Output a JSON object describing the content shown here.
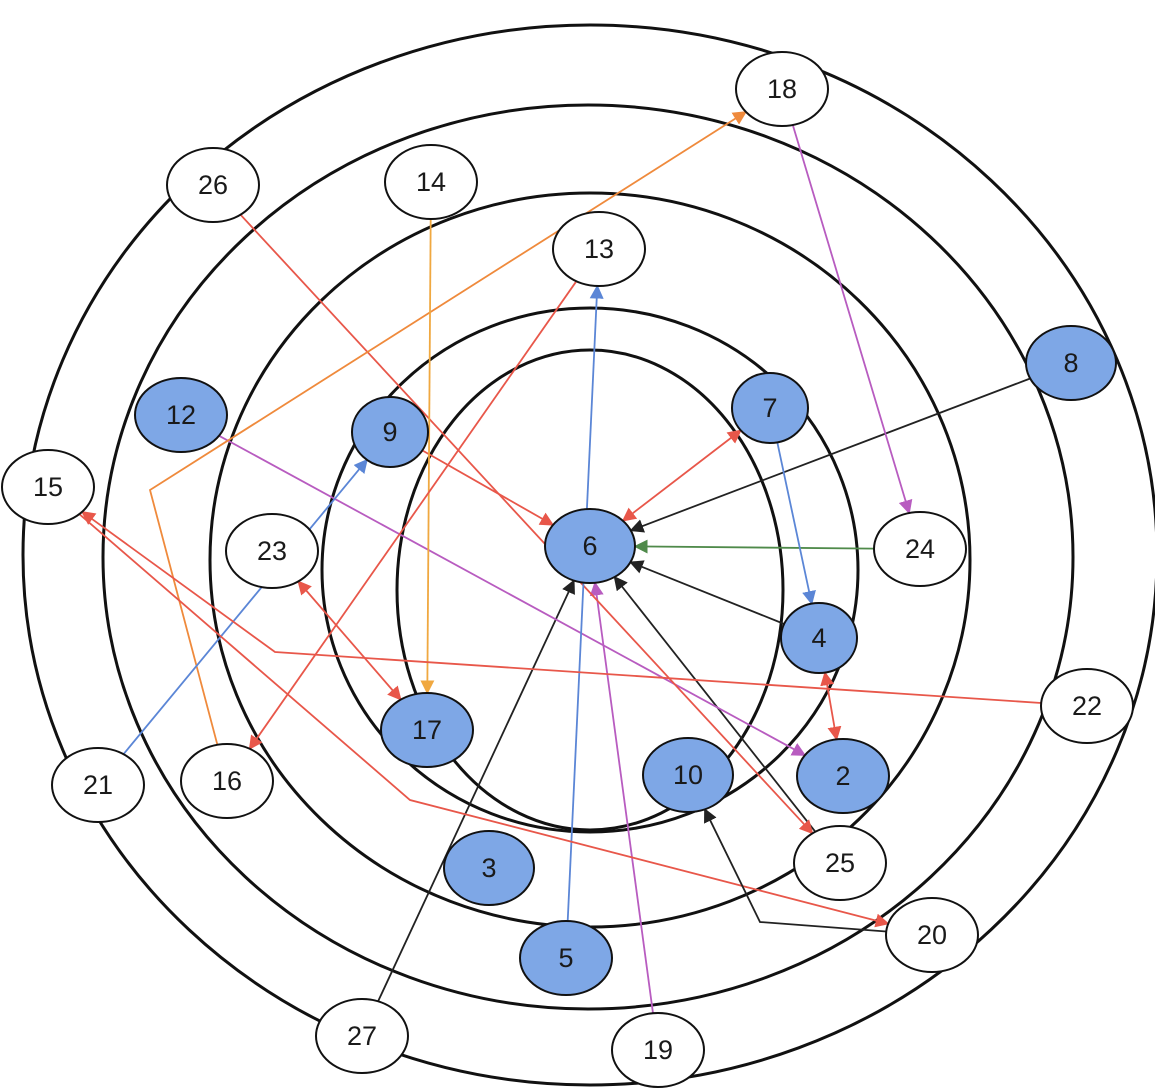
{
  "colors": {
    "background": "#ffffff",
    "ring_stroke": "#111111",
    "node_plain_fill": "#ffffff",
    "node_highlight_fill": "#7ea7e6",
    "node_stroke": "#111111",
    "edge_red": "#e8574a",
    "edge_orange": "#ef8a3c",
    "edge_amber": "#f0a840",
    "edge_blue": "#5b86d6",
    "edge_purple": "#b85cc0",
    "edge_black": "#222222",
    "edge_green": "#4f8a4a"
  },
  "nodes": [
    {
      "id": "2",
      "label": "2",
      "highlighted": true
    },
    {
      "id": "3",
      "label": "3",
      "highlighted": true
    },
    {
      "id": "4",
      "label": "4",
      "highlighted": true
    },
    {
      "id": "5",
      "label": "5",
      "highlighted": true
    },
    {
      "id": "6",
      "label": "6",
      "highlighted": true
    },
    {
      "id": "7",
      "label": "7",
      "highlighted": true
    },
    {
      "id": "8",
      "label": "8",
      "highlighted": true
    },
    {
      "id": "9",
      "label": "9",
      "highlighted": true
    },
    {
      "id": "10",
      "label": "10",
      "highlighted": true
    },
    {
      "id": "12",
      "label": "12",
      "highlighted": true
    },
    {
      "id": "13",
      "label": "13",
      "highlighted": false
    },
    {
      "id": "14",
      "label": "14",
      "highlighted": false
    },
    {
      "id": "15",
      "label": "15",
      "highlighted": false
    },
    {
      "id": "16",
      "label": "16",
      "highlighted": false
    },
    {
      "id": "17",
      "label": "17",
      "highlighted": true
    },
    {
      "id": "18",
      "label": "18",
      "highlighted": false
    },
    {
      "id": "19",
      "label": "19",
      "highlighted": false
    },
    {
      "id": "20",
      "label": "20",
      "highlighted": false
    },
    {
      "id": "21",
      "label": "21",
      "highlighted": false
    },
    {
      "id": "22",
      "label": "22",
      "highlighted": false
    },
    {
      "id": "23",
      "label": "23",
      "highlighted": false
    },
    {
      "id": "24",
      "label": "24",
      "highlighted": false
    },
    {
      "id": "25",
      "label": "25",
      "highlighted": false
    },
    {
      "id": "26",
      "label": "26",
      "highlighted": false
    },
    {
      "id": "27",
      "label": "27",
      "highlighted": false
    }
  ],
  "edges": [
    {
      "from": "9",
      "to": "6",
      "color": "edge_red",
      "arrow": "end"
    },
    {
      "from": "7",
      "to": "6",
      "color": "edge_red",
      "arrow": "both"
    },
    {
      "from": "8",
      "to": "6",
      "color": "edge_black",
      "arrow": "end"
    },
    {
      "from": "24",
      "to": "6",
      "color": "edge_green",
      "arrow": "end"
    },
    {
      "from": "4",
      "to": "6",
      "color": "edge_black",
      "arrow": "end"
    },
    {
      "from": "27",
      "to": "6",
      "color": "edge_black",
      "arrow": "end"
    },
    {
      "from": "19",
      "to": "6",
      "color": "edge_purple",
      "arrow": "end"
    },
    {
      "from": "25",
      "to": "6",
      "color": "edge_black",
      "arrow": "end"
    },
    {
      "from": "7",
      "to": "4",
      "color": "edge_blue",
      "arrow": "end"
    },
    {
      "from": "4",
      "to": "2",
      "color": "edge_red",
      "arrow": "both"
    },
    {
      "from": "12",
      "to": "2",
      "color": "edge_purple",
      "arrow": "end"
    },
    {
      "from": "26",
      "to": "25",
      "color": "edge_red",
      "arrow": "end"
    },
    {
      "from": "18",
      "to": "24",
      "color": "edge_purple",
      "arrow": "end"
    },
    {
      "from": "16",
      "to": "18",
      "color": "edge_orange",
      "arrow": "end"
    },
    {
      "from": "14",
      "to": "17",
      "color": "edge_amber",
      "arrow": "end"
    },
    {
      "from": "13",
      "to": "16",
      "color": "edge_red",
      "arrow": "end"
    },
    {
      "from": "5",
      "to": "13",
      "color": "edge_blue",
      "arrow": "end"
    },
    {
      "from": "21",
      "to": "9",
      "color": "edge_blue",
      "arrow": "end"
    },
    {
      "from": "23",
      "to": "17",
      "color": "edge_red",
      "arrow": "both"
    },
    {
      "from": "22",
      "to": "15",
      "color": "edge_red",
      "arrow": "end"
    },
    {
      "from": "15",
      "to": "20",
      "color": "edge_red",
      "arrow": "end"
    },
    {
      "from": "20",
      "to": "10",
      "color": "edge_black",
      "arrow": "end"
    }
  ]
}
